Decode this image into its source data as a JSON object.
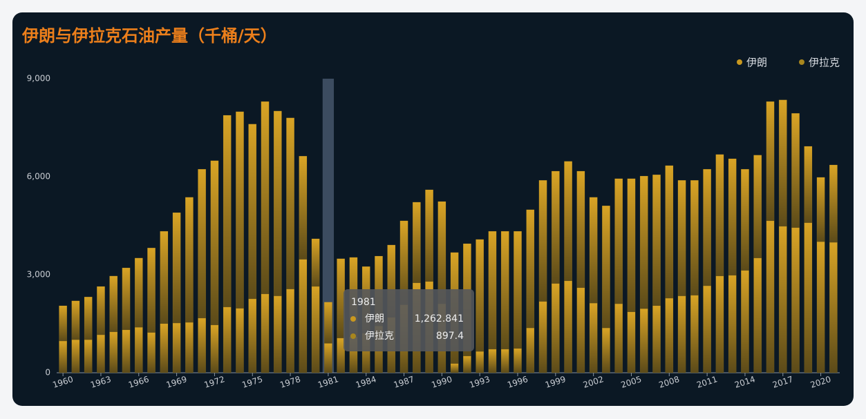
{
  "chart_data": {
    "type": "stacked-bar",
    "title": "伊朗与伊拉克石油产量（千桶/天）",
    "categories": [
      "1960",
      null,
      null,
      "1963",
      null,
      null,
      "1966",
      null,
      null,
      "1969",
      null,
      null,
      "1972",
      null,
      null,
      "1975",
      null,
      null,
      "1978",
      null,
      null,
      "1981",
      null,
      null,
      "1984",
      null,
      null,
      "1987",
      null,
      null,
      "1990",
      null,
      null,
      "1993",
      null,
      null,
      "1996",
      null,
      null,
      "1999",
      null,
      null,
      "2002",
      null,
      null,
      "2005",
      null,
      null,
      "2008",
      null,
      null,
      "2011",
      null,
      null,
      "2014",
      null,
      null,
      "2017",
      null,
      null,
      "2020",
      null
    ],
    "series": [
      {
        "name": "伊朗",
        "color": "#c9981f",
        "values": [
          1080,
          1190,
          1310,
          1480,
          1710,
          1900,
          2120,
          2590,
          2830,
          3380,
          3830,
          4560,
          5030,
          5870,
          6020,
          5350,
          5890,
          5660,
          5240,
          3160,
          1460,
          1262.841,
          2430,
          2430,
          2040,
          2140,
          2220,
          2570,
          2470,
          2810,
          3130,
          3400,
          3440,
          3430,
          3610,
          3610,
          3590,
          3620,
          3710,
          3440,
          3660,
          3570,
          3240,
          3740,
          3830,
          4080,
          4060,
          4010,
          4060,
          3540,
          3520,
          3570,
          3720,
          3570,
          3100,
          3150,
          3650,
          3870,
          3500,
          2340,
          1970,
          2370
        ]
      },
      {
        "name": "伊拉克",
        "color": "#a8861e",
        "values": [
          970,
          1010,
          1010,
          1160,
          1250,
          1310,
          1390,
          1230,
          1500,
          1520,
          1540,
          1670,
          1460,
          2010,
          1970,
          2260,
          2410,
          2350,
          2560,
          3470,
          2640,
          897.4,
          1060,
          1100,
          1210,
          1430,
          1690,
          2080,
          2750,
          2790,
          2110,
          280,
          510,
          650,
          720,
          720,
          740,
          1370,
          2180,
          2730,
          2810,
          2600,
          2130,
          1370,
          2110,
          1860,
          1960,
          2050,
          2280,
          2350,
          2370,
          2660,
          2960,
          2980,
          3130,
          3510,
          4650,
          4480,
          4440,
          4590,
          4010,
          3990
        ]
      }
    ],
    "ylim": [
      0,
      9000
    ],
    "yticks": [
      0,
      {
        "value": 3000,
        "label": "3,000"
      },
      {
        "value": 6000,
        "label": "6,000"
      },
      {
        "value": 9000,
        "label": "9,000"
      }
    ],
    "legend": "top-right",
    "tooltip": {
      "title": "1981",
      "rows": [
        {
          "name": "伊朗",
          "value": "1,262.841"
        },
        {
          "name": "伊拉克",
          "value": "897.4"
        }
      ]
    }
  }
}
